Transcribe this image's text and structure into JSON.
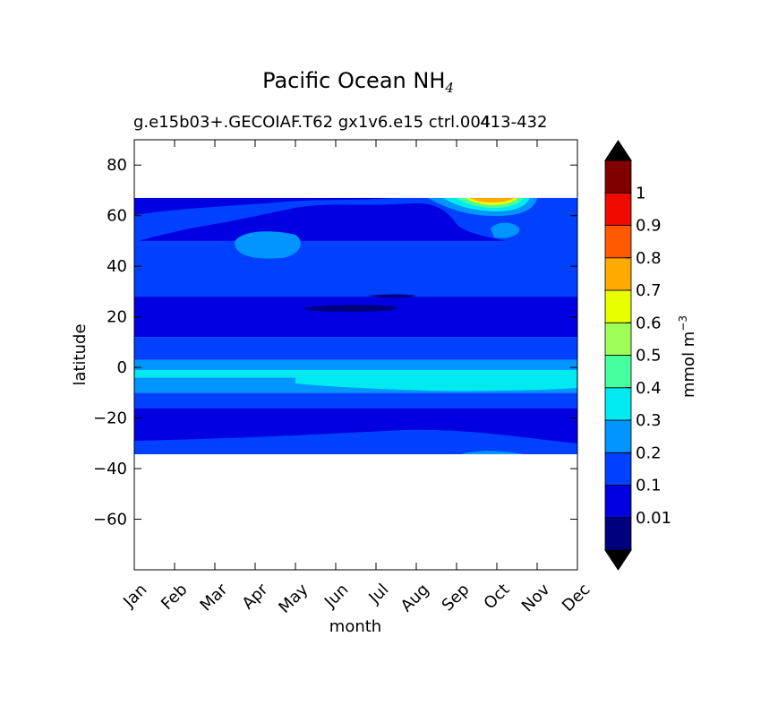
{
  "chart_data": {
    "type": "heatmap",
    "plot_style": "filled contour (latitude vs month)",
    "title": "Pacific Ocean NH",
    "title_subscript": "4",
    "subtitle": "g.e15b03+.GECOIAF.T62 gx1v6.e15 ctrl.004",
    "subtitle_suffix": "413-432",
    "xlabel": "month",
    "ylabel": "latitude",
    "x": [
      "Jan",
      "Feb",
      "Mar",
      "Apr",
      "May",
      "Jun",
      "Jul",
      "Aug",
      "Sep",
      "Oct",
      "Nov",
      "Dec"
    ],
    "ylim": [
      -80,
      90
    ],
    "yticks": [
      -60,
      -40,
      -20,
      0,
      20,
      40,
      60,
      80
    ],
    "ytick_labels": [
      "−60",
      "−40",
      "−20",
      "0",
      "20",
      "40",
      "60",
      "80"
    ],
    "data_extent_lat": [
      -34,
      67
    ],
    "colorbar": {
      "label": "mmol m",
      "label_superscript": "−3",
      "levels": [
        0,
        0.01,
        0.1,
        0.2,
        0.3,
        0.4,
        0.5,
        0.6,
        0.7,
        0.8,
        0.9,
        1,
        1.1
      ],
      "tick_values": [
        0.01,
        0.1,
        0.2,
        0.3,
        0.4,
        0.5,
        0.6,
        0.7,
        0.8,
        0.9,
        1
      ],
      "tick_labels": [
        "0.01",
        "0.1",
        "0.2",
        "0.3",
        "0.4",
        "0.5",
        "0.6",
        "0.7",
        "0.8",
        "0.9",
        "1"
      ],
      "colors": [
        "#00007f",
        "#0000e0",
        "#0040ff",
        "#0095ff",
        "#00eaf0",
        "#46ff9e",
        "#a0ff56",
        "#e8ff00",
        "#ffaa00",
        "#ff5a00",
        "#f00a00",
        "#800000"
      ],
      "extend": "both"
    },
    "bands": [
      {
        "level": 1,
        "lat": [
          -34,
          -16
        ]
      },
      {
        "level": 2,
        "lat": [
          -16,
          -10
        ]
      },
      {
        "level": 3,
        "lat": [
          -10,
          -4
        ]
      },
      {
        "level": 4,
        "lat": [
          -4,
          -1
        ]
      },
      {
        "level": 3,
        "lat": [
          -1,
          3
        ]
      },
      {
        "level": 2,
        "lat": [
          3,
          12
        ]
      },
      {
        "level": 1,
        "lat": [
          12,
          28
        ]
      },
      {
        "level": 2,
        "lat": [
          28,
          50
        ]
      },
      {
        "level": 1,
        "lat": [
          50,
          67
        ]
      }
    ]
  }
}
